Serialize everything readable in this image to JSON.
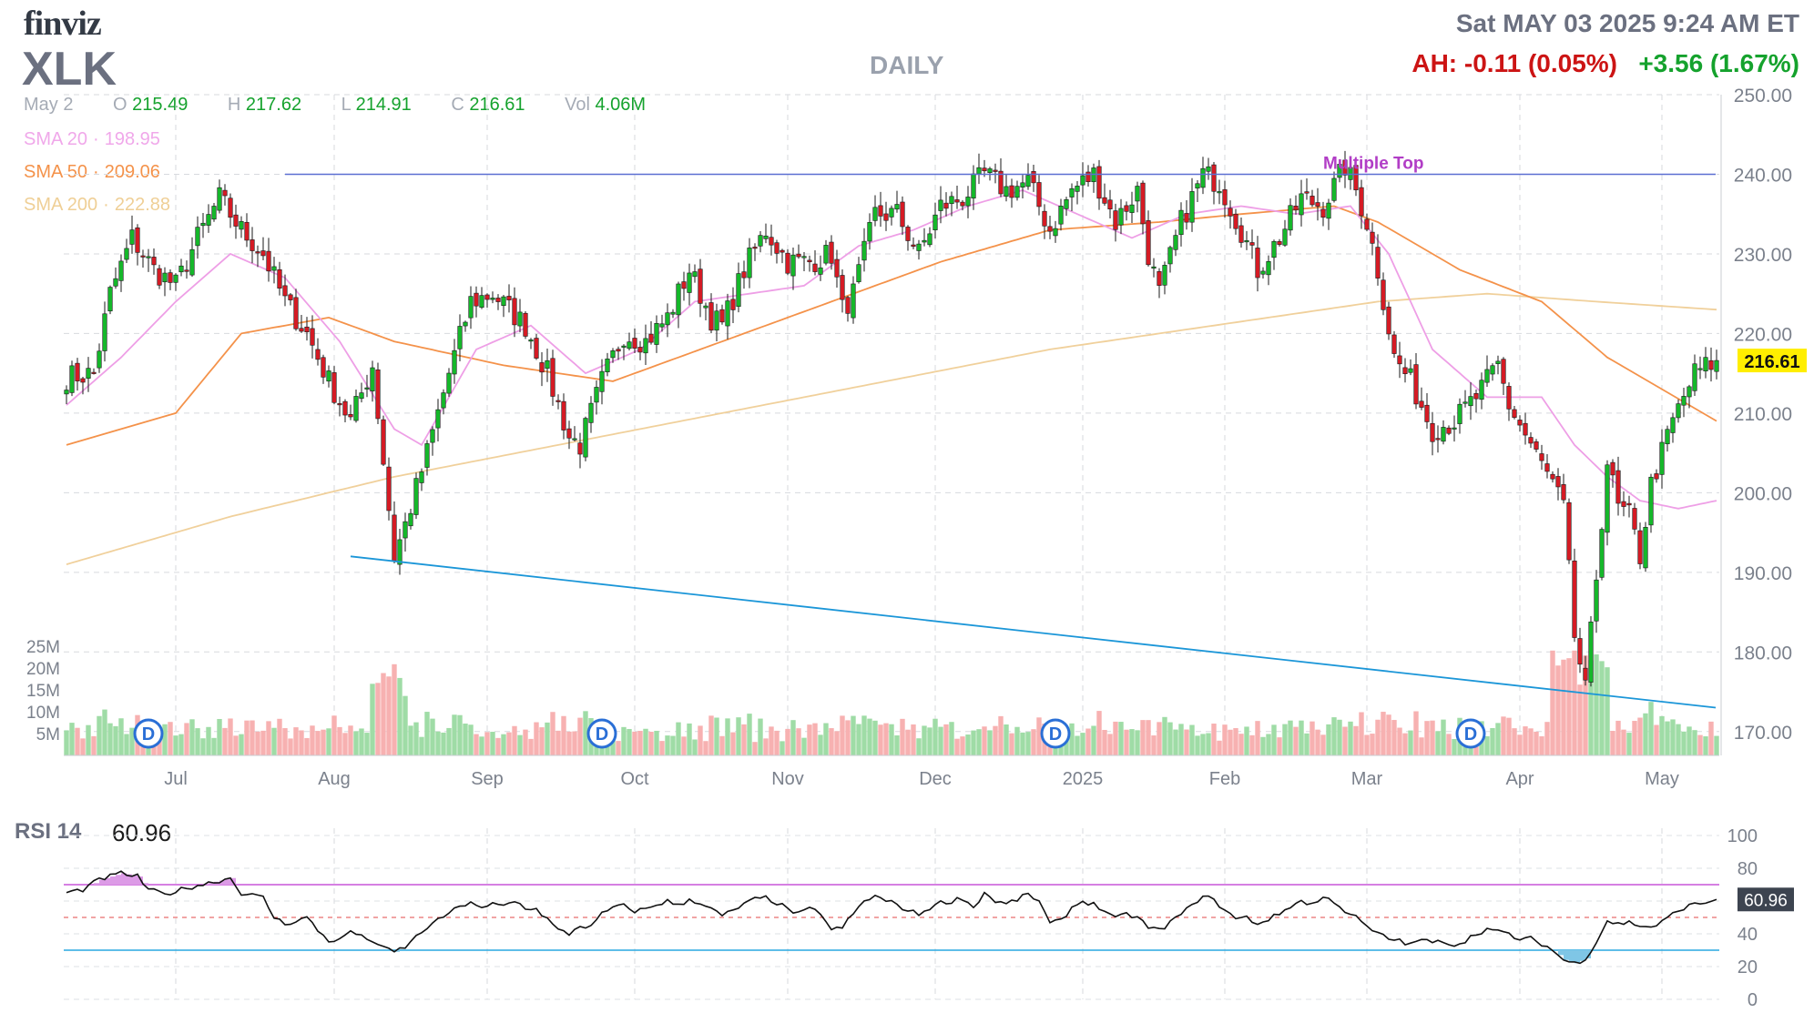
{
  "header": {
    "logo": "finviz",
    "ticker": "XLK",
    "interval": "DAILY",
    "datetime": "Sat MAY 03 2025 9:24 AM ET",
    "after_hours": "AH: -0.11 (0.05%)",
    "day_change": "+3.56 (1.67%)"
  },
  "ohlc": {
    "date": "May 2",
    "open_label": "O",
    "open": "215.49",
    "high_label": "H",
    "high": "217.62",
    "low_label": "L",
    "low": "214.91",
    "close_label": "C",
    "close": "216.61",
    "vol_label": "Vol",
    "volume": "4.06M"
  },
  "indicators": [
    {
      "name": "SMA 20",
      "value": "198.95",
      "color": "#f0a8ea"
    },
    {
      "name": "SMA 50",
      "value": "209.06",
      "color": "#f4924a"
    },
    {
      "name": "SMA 200",
      "value": "222.88",
      "color": "#f2d6a2"
    }
  ],
  "colors": {
    "up": "#15b82a",
    "down": "#d51b24",
    "vol_up": "#9fdca6",
    "vol_down": "#f7b1b1",
    "trendline_resistance": "#5b6fd1",
    "trendline_support": "#1b96d8",
    "rsi_line": "#111111",
    "rsi_overbought": "#c855d8",
    "rsi_oversold": "#29a9e0",
    "pattern": "#b13dc6",
    "dividend": "#2a6fd6",
    "last_price_bg": "#ffee00"
  },
  "pattern_label": "Multiple Top",
  "last_price": "216.61",
  "dividend_icon": "D",
  "chart_data": {
    "type": "candlestick",
    "y_axis": {
      "min": 167,
      "max": 250,
      "ticks": [
        "250.00",
        "240.00",
        "230.00",
        "220.00",
        "210.00",
        "200.00",
        "190.00",
        "180.00",
        "170.00"
      ]
    },
    "x_labels": [
      "Jul",
      "Aug",
      "Sep",
      "Oct",
      "Nov",
      "Dec",
      "2025",
      "Feb",
      "Mar",
      "Apr",
      "May"
    ],
    "price_path": [
      [
        0,
        214.5
      ],
      [
        5,
        215
      ],
      [
        8,
        225
      ],
      [
        12,
        232
      ],
      [
        16,
        228
      ],
      [
        20,
        226
      ],
      [
        24,
        232
      ],
      [
        28,
        237
      ],
      [
        32,
        233
      ],
      [
        36,
        230
      ],
      [
        40,
        224
      ],
      [
        44,
        220
      ],
      [
        48,
        214
      ],
      [
        52,
        209
      ],
      [
        56,
        216
      ],
      [
        60,
        192
      ],
      [
        62,
        196
      ],
      [
        66,
        205
      ],
      [
        70,
        215
      ],
      [
        74,
        224
      ],
      [
        78,
        225
      ],
      [
        84,
        221
      ],
      [
        88,
        215
      ],
      [
        92,
        207
      ],
      [
        94,
        206
      ],
      [
        98,
        214
      ],
      [
        102,
        220
      ],
      [
        106,
        219
      ],
      [
        110,
        222
      ],
      [
        114,
        228
      ],
      [
        118,
        222
      ],
      [
        120,
        221
      ],
      [
        124,
        228
      ],
      [
        128,
        233
      ],
      [
        132,
        229
      ],
      [
        136,
        229
      ],
      [
        140,
        230
      ],
      [
        142,
        223
      ],
      [
        144,
        225
      ],
      [
        148,
        235
      ],
      [
        152,
        235
      ],
      [
        156,
        230
      ],
      [
        160,
        236
      ],
      [
        164,
        237
      ],
      [
        168,
        240
      ],
      [
        172,
        238
      ],
      [
        176,
        239
      ],
      [
        180,
        233
      ],
      [
        184,
        238
      ],
      [
        188,
        240
      ],
      [
        192,
        234
      ],
      [
        196,
        238
      ],
      [
        198,
        230
      ],
      [
        200,
        225
      ],
      [
        204,
        234
      ],
      [
        208,
        240
      ],
      [
        211,
        239
      ],
      [
        215,
        233
      ],
      [
        218,
        228
      ],
      [
        222,
        232
      ],
      [
        226,
        237
      ],
      [
        230,
        236
      ],
      [
        234,
        241
      ],
      [
        236,
        238
      ],
      [
        238,
        234
      ],
      [
        240,
        228
      ],
      [
        243,
        217
      ],
      [
        246,
        214
      ],
      [
        250,
        208
      ],
      [
        254,
        209
      ],
      [
        258,
        212
      ],
      [
        262,
        216
      ],
      [
        264,
        211
      ],
      [
        268,
        206
      ],
      [
        272,
        201
      ],
      [
        274,
        198
      ],
      [
        276,
        182
      ],
      [
        278,
        175
      ],
      [
        282,
        204
      ],
      [
        284,
        198
      ],
      [
        286,
        197
      ],
      [
        288,
        192
      ],
      [
        290,
        201
      ],
      [
        294,
        209
      ],
      [
        298,
        215
      ],
      [
        302,
        216.61
      ]
    ],
    "sma20": [
      [
        0,
        211
      ],
      [
        10,
        217
      ],
      [
        20,
        224
      ],
      [
        30,
        230
      ],
      [
        40,
        227
      ],
      [
        50,
        219
      ],
      [
        60,
        208
      ],
      [
        65,
        206
      ],
      [
        75,
        218
      ],
      [
        85,
        221
      ],
      [
        95,
        215
      ],
      [
        105,
        218
      ],
      [
        115,
        224
      ],
      [
        125,
        225
      ],
      [
        135,
        226
      ],
      [
        145,
        231
      ],
      [
        155,
        233
      ],
      [
        165,
        236
      ],
      [
        175,
        238
      ],
      [
        185,
        235
      ],
      [
        195,
        232
      ],
      [
        205,
        235
      ],
      [
        215,
        236
      ],
      [
        225,
        235
      ],
      [
        235,
        236
      ],
      [
        242,
        230
      ],
      [
        250,
        218
      ],
      [
        260,
        212
      ],
      [
        270,
        212
      ],
      [
        276,
        206
      ],
      [
        282,
        202
      ],
      [
        288,
        199
      ],
      [
        295,
        198
      ],
      [
        302,
        199
      ]
    ],
    "sma50": [
      [
        0,
        206
      ],
      [
        20,
        210
      ],
      [
        32,
        220
      ],
      [
        48,
        222
      ],
      [
        60,
        219
      ],
      [
        80,
        216
      ],
      [
        100,
        214
      ],
      [
        120,
        219
      ],
      [
        140,
        224
      ],
      [
        160,
        229
      ],
      [
        180,
        233
      ],
      [
        200,
        234
      ],
      [
        215,
        235
      ],
      [
        232,
        236
      ],
      [
        240,
        234
      ],
      [
        255,
        228
      ],
      [
        270,
        224
      ],
      [
        282,
        217
      ],
      [
        302,
        209
      ]
    ],
    "sma200": [
      [
        0,
        191
      ],
      [
        30,
        197
      ],
      [
        60,
        202
      ],
      [
        90,
        206
      ],
      [
        120,
        210
      ],
      [
        150,
        214
      ],
      [
        180,
        218
      ],
      [
        210,
        221
      ],
      [
        240,
        224
      ],
      [
        260,
        225
      ],
      [
        280,
        224
      ],
      [
        302,
        223
      ]
    ],
    "volume_axis_ticks": [
      "25M",
      "20M",
      "15M",
      "10M",
      "5M"
    ],
    "volume_max_m": 25,
    "dividend_markers_x": [
      15,
      98,
      181,
      257
    ],
    "resistance_line": {
      "price": 240
    },
    "support_line": {
      "x1": 52,
      "y1": 192,
      "x2": 302,
      "y2": 173
    },
    "rsi": {
      "name": "RSI 14",
      "last": "60.96",
      "ticks": [
        "100",
        "80",
        "60",
        "40",
        "20",
        "0"
      ],
      "overbought": 70,
      "oversold": 30,
      "midline": 50,
      "values": [
        [
          0,
          65
        ],
        [
          3,
          67
        ],
        [
          6,
          73
        ],
        [
          10,
          77
        ],
        [
          13,
          75
        ],
        [
          15,
          67
        ],
        [
          18,
          64
        ],
        [
          22,
          68
        ],
        [
          26,
          71
        ],
        [
          30,
          74
        ],
        [
          32,
          65
        ],
        [
          36,
          62
        ],
        [
          38,
          50
        ],
        [
          40,
          46
        ],
        [
          44,
          50
        ],
        [
          46,
          42
        ],
        [
          48,
          36
        ],
        [
          50,
          36
        ],
        [
          52,
          42
        ],
        [
          54,
          38
        ],
        [
          56,
          36
        ],
        [
          58,
          31
        ],
        [
          60,
          29
        ],
        [
          62,
          32
        ],
        [
          64,
          38
        ],
        [
          66,
          44
        ],
        [
          68,
          48
        ],
        [
          70,
          53
        ],
        [
          72,
          56
        ],
        [
          74,
          60
        ],
        [
          76,
          55
        ],
        [
          78,
          58
        ],
        [
          80,
          57
        ],
        [
          82,
          60
        ],
        [
          84,
          56
        ],
        [
          86,
          55
        ],
        [
          88,
          49
        ],
        [
          90,
          42
        ],
        [
          92,
          40
        ],
        [
          94,
          45
        ],
        [
          96,
          44
        ],
        [
          98,
          52
        ],
        [
          100,
          56
        ],
        [
          102,
          57
        ],
        [
          104,
          54
        ],
        [
          106,
          55
        ],
        [
          108,
          58
        ],
        [
          110,
          60
        ],
        [
          112,
          57
        ],
        [
          114,
          61
        ],
        [
          116,
          59
        ],
        [
          118,
          55
        ],
        [
          120,
          51
        ],
        [
          122,
          54
        ],
        [
          124,
          58
        ],
        [
          126,
          61
        ],
        [
          128,
          62
        ],
        [
          130,
          59
        ],
        [
          132,
          55
        ],
        [
          134,
          52
        ],
        [
          136,
          55
        ],
        [
          138,
          53
        ],
        [
          140,
          42
        ],
        [
          142,
          44
        ],
        [
          144,
          52
        ],
        [
          146,
          60
        ],
        [
          148,
          63
        ],
        [
          150,
          60
        ],
        [
          152,
          58
        ],
        [
          154,
          54
        ],
        [
          156,
          52
        ],
        [
          158,
          56
        ],
        [
          160,
          59
        ],
        [
          162,
          60
        ],
        [
          164,
          62
        ],
        [
          166,
          56
        ],
        [
          168,
          65
        ],
        [
          170,
          60
        ],
        [
          172,
          58
        ],
        [
          174,
          61
        ],
        [
          176,
          64
        ],
        [
          178,
          60
        ],
        [
          180,
          46
        ],
        [
          182,
          48
        ],
        [
          184,
          56
        ],
        [
          186,
          60
        ],
        [
          188,
          58
        ],
        [
          190,
          54
        ],
        [
          192,
          49
        ],
        [
          194,
          52
        ],
        [
          196,
          50
        ],
        [
          198,
          44
        ],
        [
          200,
          42
        ],
        [
          202,
          47
        ],
        [
          204,
          52
        ],
        [
          206,
          57
        ],
        [
          208,
          64
        ],
        [
          210,
          60
        ],
        [
          212,
          55
        ],
        [
          214,
          49
        ],
        [
          216,
          50
        ],
        [
          218,
          46
        ],
        [
          220,
          49
        ],
        [
          222,
          52
        ],
        [
          224,
          57
        ],
        [
          226,
          60
        ],
        [
          228,
          58
        ],
        [
          230,
          62
        ],
        [
          232,
          60
        ],
        [
          234,
          54
        ],
        [
          236,
          50
        ],
        [
          238,
          44
        ],
        [
          240,
          40
        ],
        [
          242,
          37
        ],
        [
          244,
          36
        ],
        [
          246,
          33
        ],
        [
          248,
          37
        ],
        [
          250,
          34
        ],
        [
          252,
          36
        ],
        [
          254,
          33
        ],
        [
          256,
          36
        ],
        [
          258,
          40
        ],
        [
          260,
          43
        ],
        [
          262,
          41
        ],
        [
          264,
          40
        ],
        [
          266,
          36
        ],
        [
          268,
          37
        ],
        [
          270,
          34
        ],
        [
          272,
          30
        ],
        [
          274,
          24
        ],
        [
          276,
          22
        ],
        [
          278,
          25
        ],
        [
          280,
          35
        ],
        [
          282,
          48
        ],
        [
          284,
          46
        ],
        [
          286,
          47
        ],
        [
          288,
          45
        ],
        [
          290,
          44
        ],
        [
          292,
          47
        ],
        [
          294,
          52
        ],
        [
          296,
          56
        ],
        [
          298,
          58
        ],
        [
          300,
          59
        ],
        [
          302,
          60.96
        ]
      ]
    }
  }
}
